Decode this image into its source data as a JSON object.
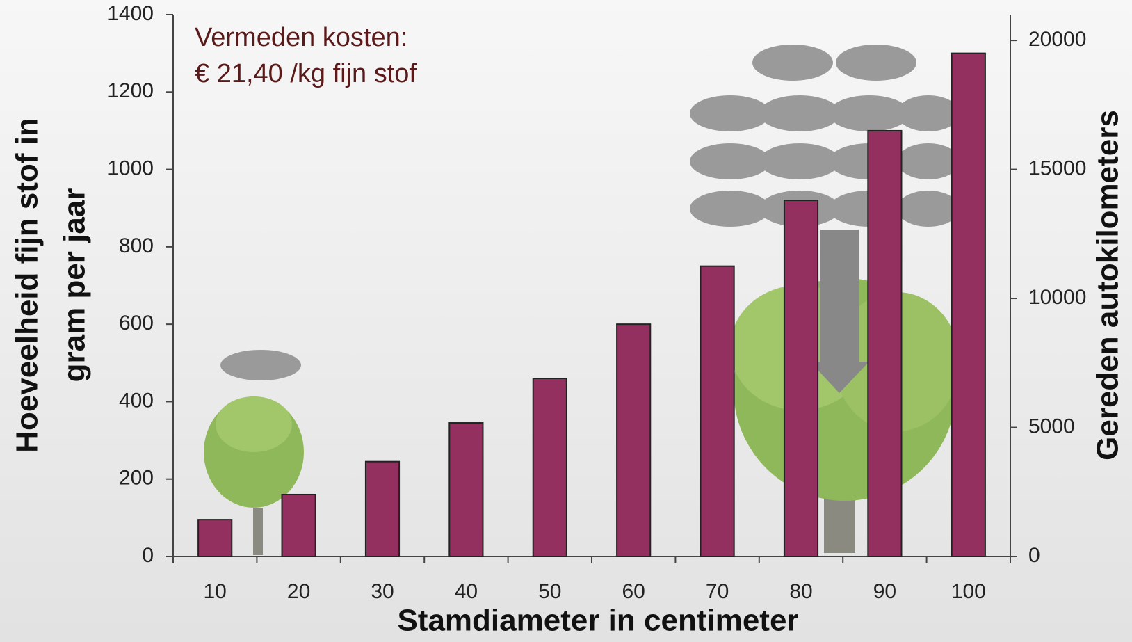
{
  "chart_data": {
    "type": "bar",
    "ylabel": [
      "Hoeveelheid fijn stof in",
      "gram per jaar"
    ],
    "y2label": "Gereden autokilometers",
    "xlabel": "Stamdiameter in centimeter",
    "annotations": [
      "Vermeden kosten:",
      "€ 21,40 /kg fijn stof"
    ],
    "categories": [
      "10",
      "20",
      "30",
      "40",
      "50",
      "60",
      "70",
      "80",
      "90",
      "100"
    ],
    "values": [
      95,
      160,
      245,
      345,
      460,
      600,
      750,
      920,
      1100,
      1300
    ],
    "color": "#93305f",
    "ylim": [
      0,
      1400
    ],
    "yticks": [
      0,
      200,
      400,
      600,
      800,
      1000,
      1200,
      1400
    ],
    "y2lim": [
      0,
      21000
    ],
    "y2ticks": [
      0,
      5000,
      10000,
      15000,
      20000
    ]
  }
}
